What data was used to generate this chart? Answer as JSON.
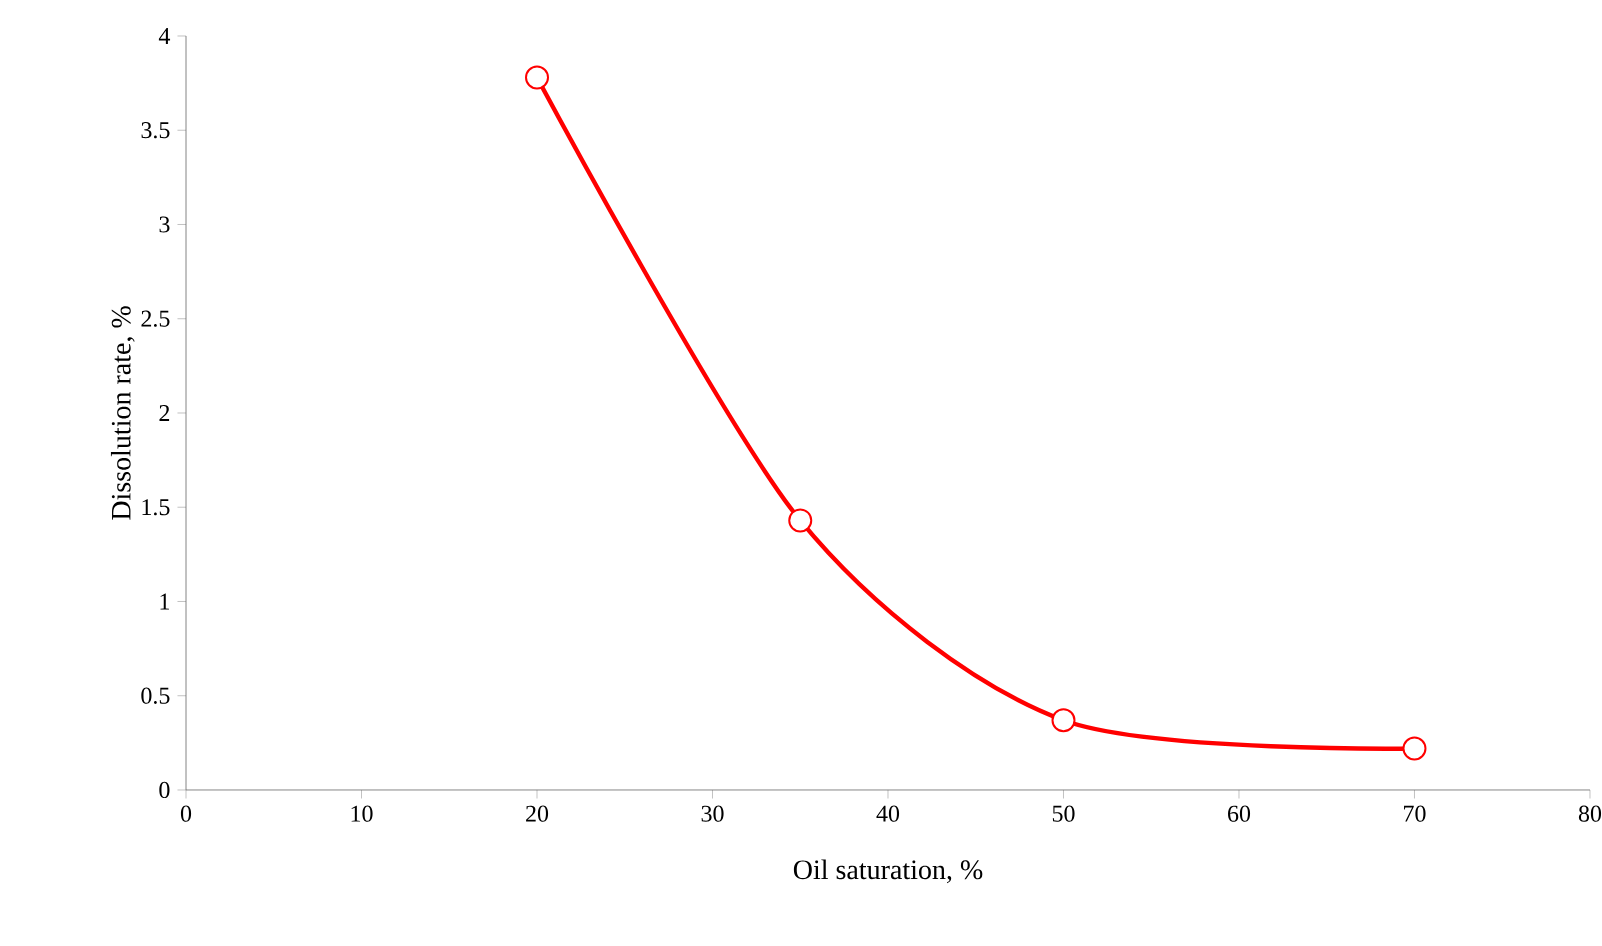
{
  "chart_data": {
    "type": "line",
    "xlabel": "Oil saturation, %",
    "ylabel": "Dissolution rate, %",
    "x": [
      20,
      35,
      50,
      70
    ],
    "series": [
      {
        "color": "#ff0000",
        "values": [
          3.78,
          1.43,
          0.37,
          0.22
        ]
      }
    ],
    "xlim": [
      0,
      80
    ],
    "xticks": [
      0,
      10,
      20,
      30,
      40,
      50,
      60,
      70,
      80
    ],
    "ylim": [
      0,
      4
    ],
    "yticks": [
      0,
      0.5,
      1,
      1.5,
      2,
      2.5,
      3,
      3.5,
      4
    ],
    "grid": false,
    "marker": "circle",
    "line_style": "solid"
  }
}
